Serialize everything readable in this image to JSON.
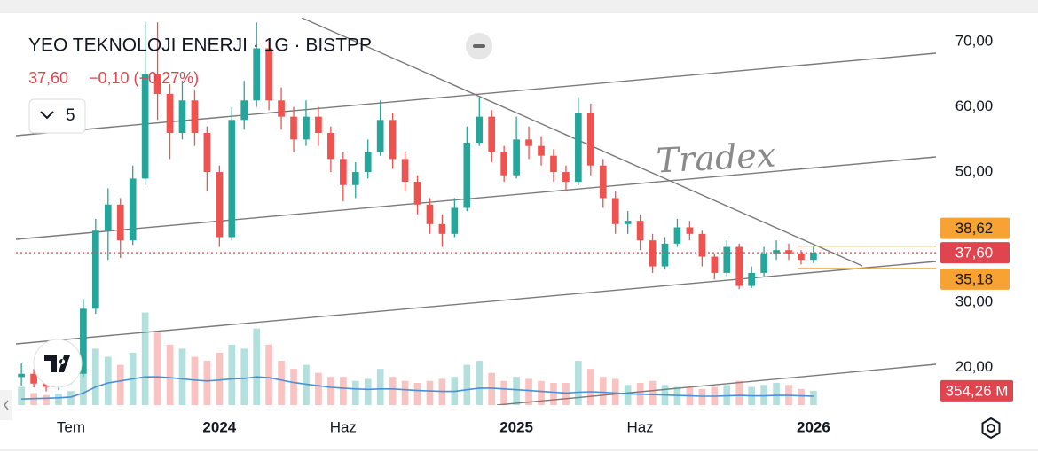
{
  "chart_data": {
    "type": "candlestick",
    "title": "YEO TEKNOLOJI ENERJI · 1G · BISTPP",
    "legend_price": "37,60",
    "legend_change": "−0,10 (−0,27%)",
    "indicator_count": "5",
    "watermark": "Tradex",
    "x": [
      4.0,
      4.5,
      5.0,
      5.5,
      6.0,
      6.5,
      7.0,
      7.5,
      8.0,
      8.5,
      9.0,
      9.5,
      10.0,
      10.5,
      11.0,
      11.5,
      12.0,
      12.5,
      13.0,
      13.5,
      14.0,
      14.5,
      15.0,
      15.5,
      16.0,
      16.5,
      17.0,
      17.5,
      18.0,
      18.5,
      19.0,
      19.5,
      20.0,
      20.5,
      21.0,
      21.5,
      22.0,
      22.5,
      23.0,
      23.5,
      24.0,
      24.5,
      25.0,
      25.5,
      26.0,
      26.5,
      27.0,
      27.5,
      28.0,
      28.5,
      29.0,
      29.5,
      30.0,
      30.5,
      31.0,
      31.5,
      32.0,
      32.5,
      33.0,
      33.5,
      34.0,
      34.5,
      35.0,
      35.5,
      36.0
    ],
    "open": [
      18.5,
      19,
      17.5,
      17,
      18,
      19,
      29,
      41,
      45,
      39.5,
      49,
      65,
      62,
      56,
      61,
      56,
      50,
      40,
      58,
      61,
      69,
      61,
      58.5,
      55,
      58.5,
      56,
      52,
      48,
      50,
      53,
      58,
      52,
      48.5,
      45,
      42,
      40.5,
      44.5,
      54.5,
      58.5,
      53,
      49.5,
      55,
      54,
      52.5,
      50,
      48.5,
      59,
      51,
      46,
      42,
      42.5,
      39.5,
      35.5,
      39,
      41.5,
      40.5,
      37,
      34.5,
      38.5,
      32.5,
      34.5,
      37.5,
      38,
      37.5,
      36.5
    ],
    "high": [
      20.6,
      19.8,
      18.2,
      18.8,
      20.5,
      30.5,
      42.8,
      47.5,
      46,
      51,
      73,
      73,
      63.5,
      64,
      62.5,
      57,
      51,
      60,
      64,
      73,
      70.5,
      63,
      60,
      61,
      60,
      57,
      53,
      51.5,
      55,
      61,
      59,
      53,
      49.5,
      46,
      43.5,
      46,
      57,
      61.5,
      59.5,
      54,
      58.5,
      57,
      55.5,
      53.5,
      51,
      61.5,
      60.5,
      52,
      47,
      44,
      43.5,
      40.5,
      40,
      42.8,
      42.5,
      41,
      37.5,
      39.5,
      39,
      35.5,
      38.5,
      39.5,
      39,
      38,
      38.6
    ],
    "low": [
      17.2,
      16.9,
      16.3,
      16.5,
      17.4,
      18.6,
      28.2,
      36.5,
      36.8,
      38.8,
      48,
      58,
      52,
      55,
      54,
      47,
      38.5,
      39.5,
      56.5,
      60,
      59.5,
      56.5,
      53,
      54,
      54,
      50,
      45.5,
      46,
      49,
      52.5,
      50.5,
      47,
      43.5,
      40.5,
      38.5,
      40,
      44,
      54,
      51.5,
      48.5,
      49,
      52,
      51,
      48.5,
      47,
      48,
      49.5,
      44.5,
      40.5,
      40.5,
      38,
      34.5,
      35,
      38.5,
      39.5,
      35.5,
      33.5,
      34,
      32,
      32.2,
      34,
      36.5,
      36.5,
      35.8,
      36
    ],
    "close": [
      19,
      17.5,
      17,
      18,
      19,
      29,
      41,
      45,
      39.5,
      49,
      65,
      62,
      56,
      61,
      56,
      50,
      40,
      58,
      61,
      69,
      61,
      58.5,
      55,
      58.5,
      56,
      52,
      48,
      50,
      53,
      58,
      52,
      48.5,
      45,
      42,
      40.5,
      44.5,
      54.5,
      58.5,
      53,
      49.5,
      55,
      54,
      52.5,
      50,
      48.5,
      59,
      51,
      46,
      42,
      42.5,
      39.5,
      35.5,
      39,
      41.5,
      40.5,
      37,
      34.5,
      38.5,
      32.5,
      34.5,
      37.5,
      38,
      37.5,
      36.5,
      37.6
    ],
    "volume": [
      450,
      300,
      250,
      280,
      350,
      900,
      1400,
      1200,
      1000,
      1300,
      2300,
      1800,
      1500,
      1400,
      1200,
      1100,
      1300,
      1500,
      1400,
      1900,
      1500,
      1100,
      900,
      1000,
      800,
      700,
      700,
      600,
      650,
      900,
      700,
      600,
      550,
      600,
      650,
      700,
      1000,
      1100,
      800,
      600,
      700,
      650,
      600,
      550,
      550,
      1100,
      900,
      700,
      650,
      500,
      550,
      600,
      500,
      450,
      450,
      400,
      450,
      500,
      600,
      450,
      500,
      550,
      500,
      400,
      354.26
    ],
    "volume_ma": [
      150,
      160,
      170,
      180,
      200,
      300,
      450,
      550,
      600,
      650,
      700,
      700,
      680,
      650,
      620,
      600,
      620,
      650,
      660,
      700,
      680,
      620,
      560,
      520,
      480,
      440,
      420,
      400,
      390,
      400,
      400,
      380,
      360,
      350,
      340,
      340,
      380,
      420,
      420,
      400,
      380,
      360,
      340,
      320,
      300,
      320,
      330,
      320,
      300,
      280,
      270,
      260,
      250,
      240,
      230,
      220,
      220,
      230,
      240,
      230,
      230,
      240,
      240,
      230,
      220
    ],
    "up_color": "#26a69a",
    "down_color": "#ef5350",
    "volume_ma_color": "#4a90d9",
    "vlim": [
      0,
      2400
    ],
    "xlim": [
      3.78,
      40.95
    ],
    "xticks": [
      {
        "value": 6,
        "label": "Tem"
      },
      {
        "value": 12,
        "label": "2024"
      },
      {
        "value": 17,
        "label": "Haz"
      },
      {
        "value": 24,
        "label": "2025"
      },
      {
        "value": 29,
        "label": "Haz"
      },
      {
        "value": 36,
        "label": "2026"
      }
    ],
    "ylim": [
      14.2,
      73.7
    ],
    "yticks": [
      {
        "value": 70,
        "label": "70,00"
      },
      {
        "value": 60,
        "label": "60,00"
      },
      {
        "value": 50,
        "label": "50,00"
      },
      {
        "value": 30,
        "label": "30,00"
      },
      {
        "value": 20,
        "label": "20,00"
      }
    ],
    "price_lines": [
      {
        "value": 38.62,
        "label": "38,62",
        "color": "#f7a233"
      },
      {
        "value": 37.6,
        "label": "37,60",
        "color": "#e0454f"
      },
      {
        "value": 35.18,
        "label": "35,18",
        "color": "#f7a233"
      }
    ],
    "volume_label": {
      "value": 354.26,
      "label": "354,26 M",
      "color": "#e0454f"
    },
    "grid": false
  }
}
